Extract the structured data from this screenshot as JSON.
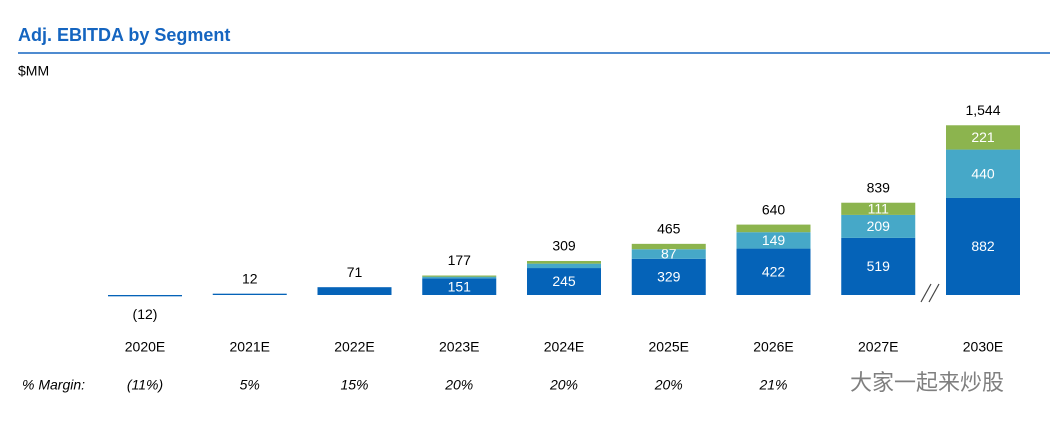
{
  "chart_data": {
    "type": "stacked_bar",
    "title": "Adj. EBITDA by Segment",
    "unit": "$MM",
    "categories": [
      "2020E",
      "2021E",
      "2022E",
      "2023E",
      "2024E",
      "2025E",
      "2026E",
      "2027E",
      "2030E"
    ],
    "series": [
      {
        "color": "#0563b8",
        "values": [
          -12,
          12,
          71,
          151,
          245,
          329,
          422,
          519,
          882
        ]
      },
      {
        "color": "#46a8c8",
        "values": [
          0,
          0,
          0,
          16,
          40,
          87,
          149,
          209,
          440
        ]
      },
      {
        "color": "#8cb44e",
        "values": [
          0,
          0,
          0,
          10,
          24,
          49,
          69,
          111,
          221
        ]
      }
    ],
    "totals": [
      -12,
      12,
      71,
      177,
      309,
      465,
      640,
      839,
      1544
    ],
    "total_labels": [
      "(12)",
      "12",
      "71",
      "177",
      "309",
      "465",
      "640",
      "839",
      "1,544"
    ],
    "ylim": [
      0,
      1600
    ],
    "margin_title": "% Margin:",
    "margin_labels": [
      "(11%)",
      "5%",
      "15%",
      "20%",
      "20%",
      "20%",
      "21%",
      null,
      null
    ],
    "watermark": "大家一起来炒股"
  }
}
